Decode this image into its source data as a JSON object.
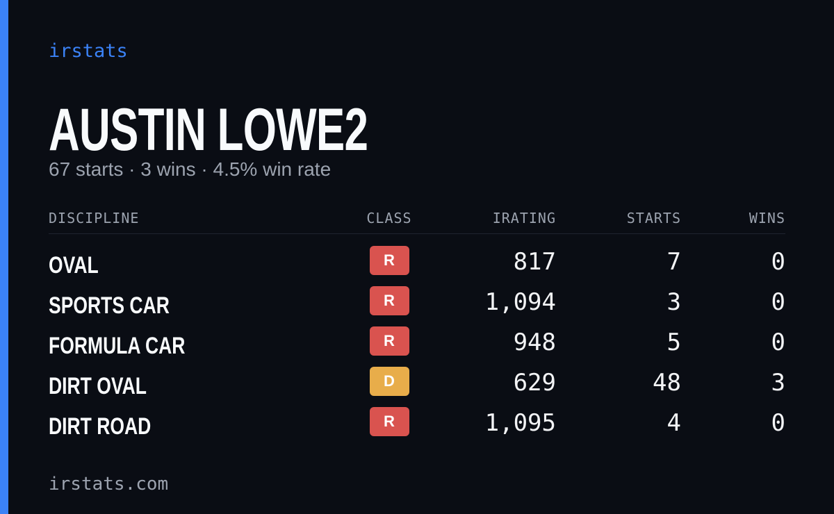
{
  "brand": "irstats",
  "profile": {
    "name": "AUSTIN LOWE2",
    "summary": "67 starts · 3 wins · 4.5% win rate"
  },
  "table": {
    "headers": [
      "DISCIPLINE",
      "CLASS",
      "IRATING",
      "STARTS",
      "WINS"
    ],
    "rows": [
      [
        "OVAL",
        "R",
        "817",
        7,
        0
      ],
      [
        "SPORTS CAR",
        "R",
        "1,094",
        3,
        0
      ],
      [
        "FORMULA CAR",
        "R",
        "948",
        5,
        0
      ],
      [
        "DIRT OVAL",
        "D",
        "629",
        48,
        3
      ],
      [
        "DIRT ROAD",
        "R",
        "1,095",
        4,
        0
      ]
    ]
  },
  "footer": "irstats.com"
}
